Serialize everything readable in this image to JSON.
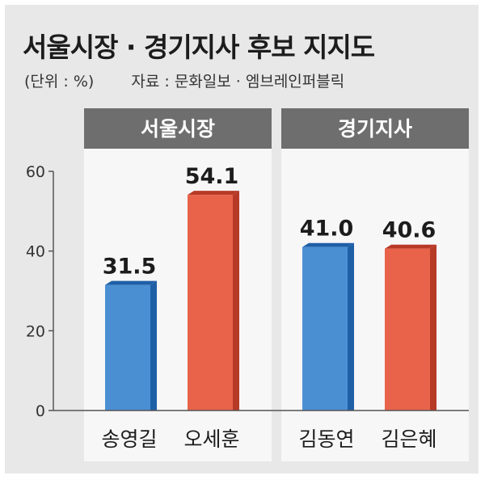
{
  "header": {
    "title": "서울시장 · 경기지사 후보 지지도",
    "unit": "(단위 : %)",
    "source": "자료 : 문화일보 · 엠브레인퍼블릭"
  },
  "colors": {
    "blue": "#4b8fd3",
    "blue_dark": "#1f5fa6",
    "red": "#e8634a",
    "red_dark": "#b73a27",
    "group_header": "#6e6e6e"
  },
  "chart_data": {
    "type": "bar",
    "ylim": [
      0,
      60
    ],
    "yticks": [
      0,
      20,
      40,
      60
    ],
    "grid": false,
    "groups": [
      {
        "name": "서울시장",
        "bars": [
          {
            "label": "송영길",
            "value": 31.5,
            "display": "31.5",
            "color": "blue"
          },
          {
            "label": "오세훈",
            "value": 54.1,
            "display": "54.1",
            "color": "red"
          }
        ]
      },
      {
        "name": "경기지사",
        "bars": [
          {
            "label": "김동연",
            "value": 41.0,
            "display": "41.0",
            "color": "blue"
          },
          {
            "label": "김은혜",
            "value": 40.6,
            "display": "40.6",
            "color": "red"
          }
        ]
      }
    ]
  }
}
